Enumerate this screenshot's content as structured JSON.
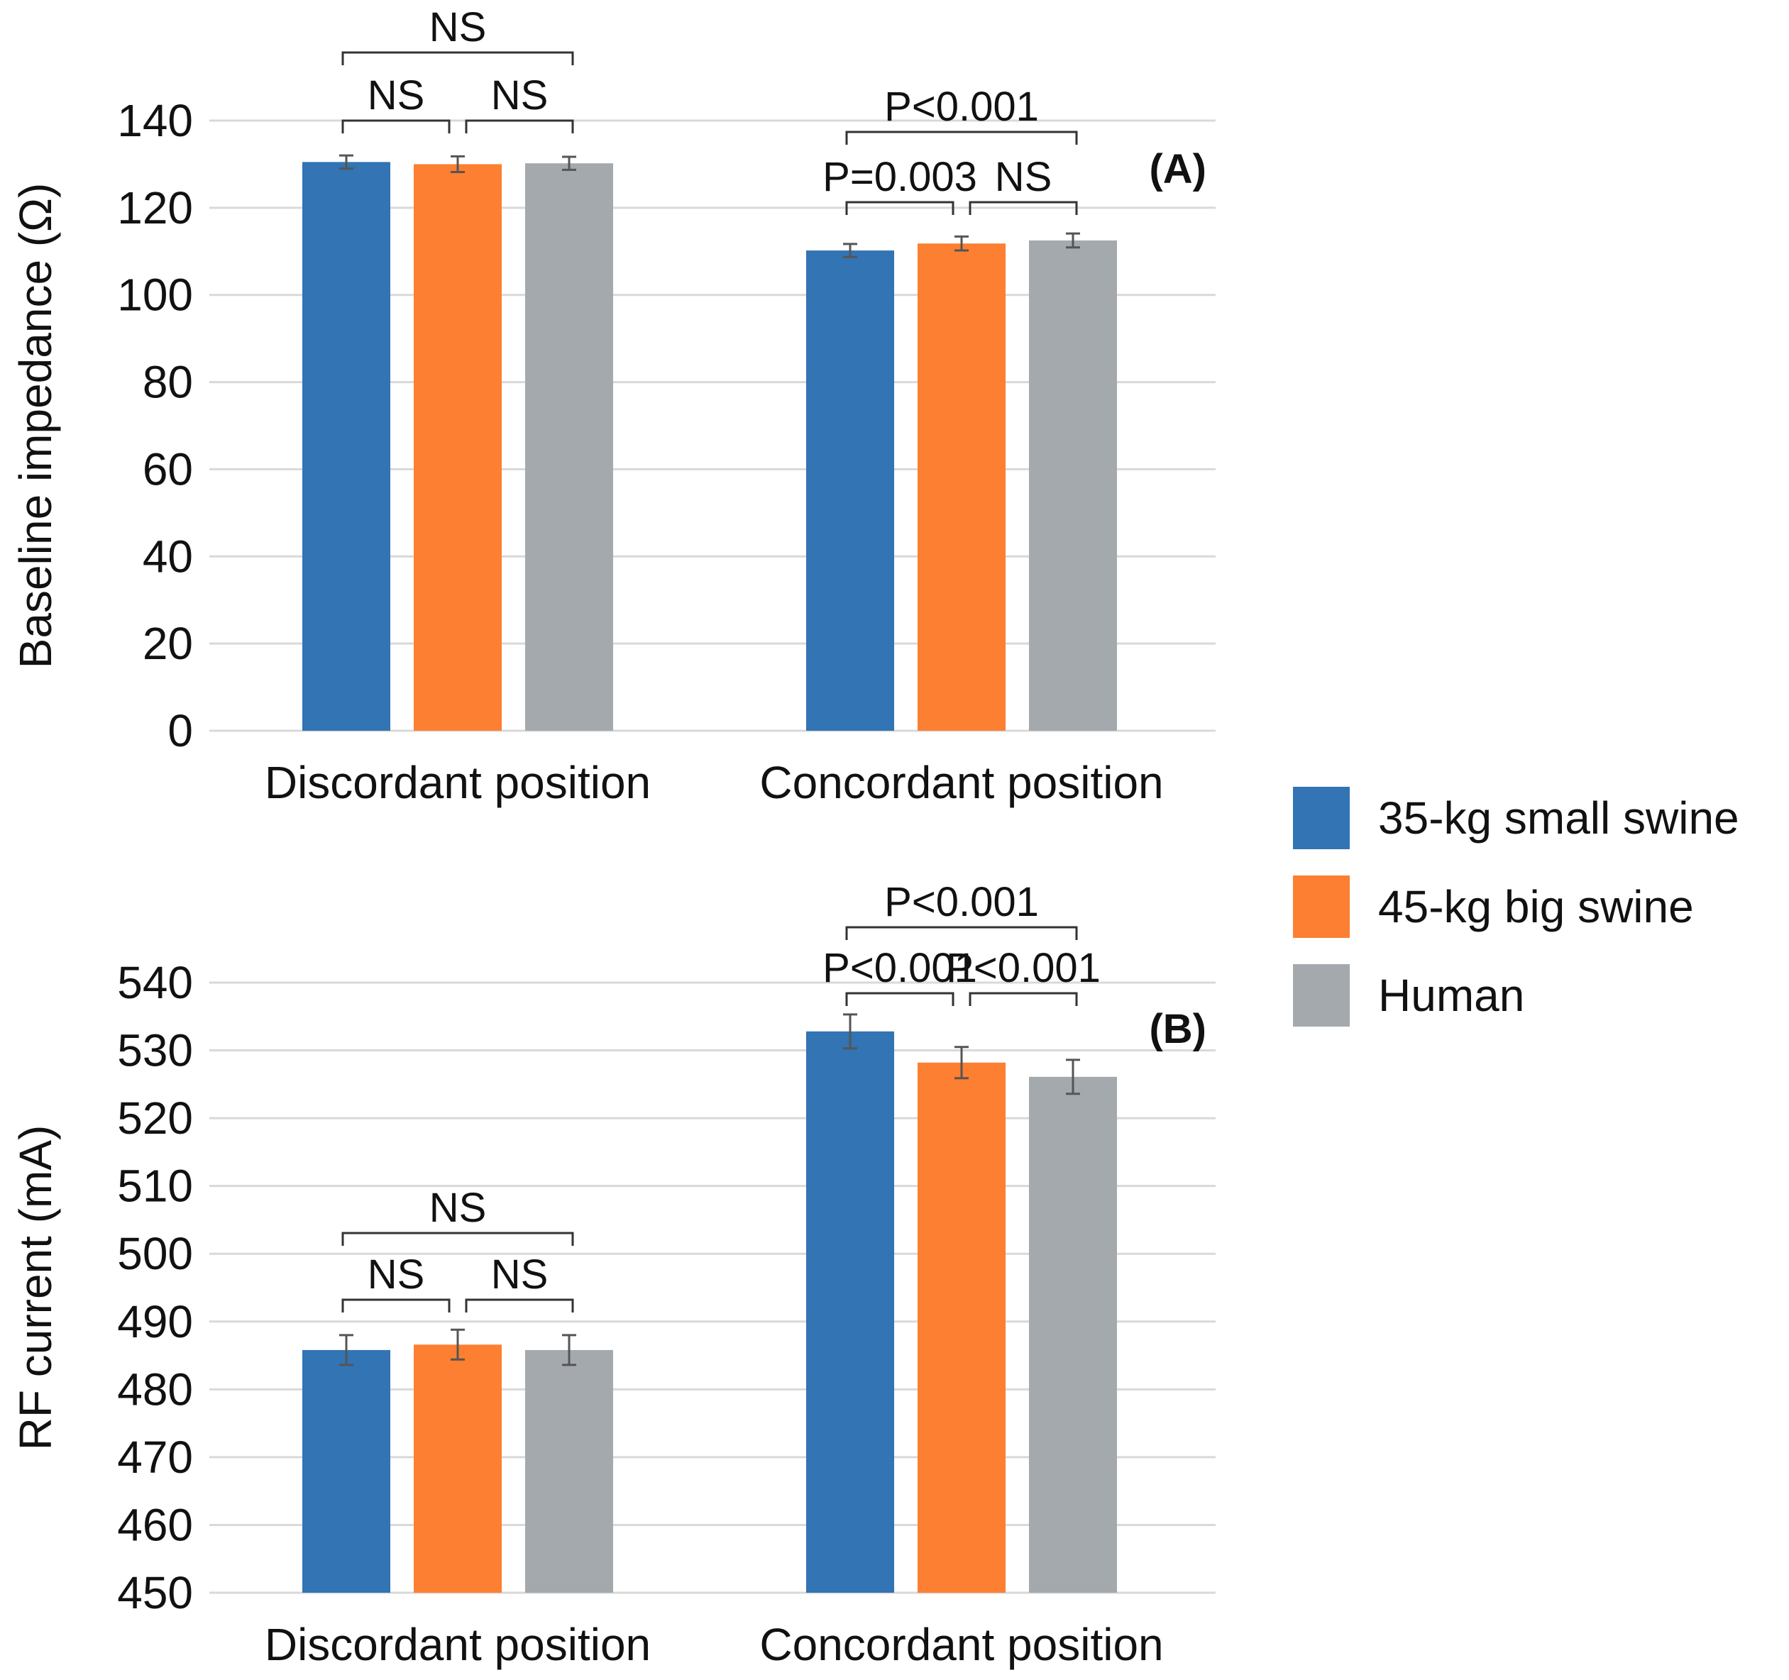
{
  "legend": {
    "items": [
      {
        "label": "35-kg small swine",
        "color": "#3274b4"
      },
      {
        "label": "45-kg big swine",
        "color": "#fd7f31"
      },
      {
        "label": "Human",
        "color": "#a4a9ad"
      }
    ]
  },
  "chart_data": [
    {
      "type": "bar",
      "panel_label": "(A)",
      "ylabel": "Baseline impedance (Ω)",
      "xlabel": "",
      "ylim": [
        0,
        140
      ],
      "yticks": [
        0,
        20,
        40,
        60,
        80,
        100,
        120,
        140
      ],
      "grid": true,
      "categories": [
        "Discordant position",
        "Concordant position"
      ],
      "series": [
        {
          "name": "35-kg small swine",
          "values": [
            130.5,
            110.2
          ],
          "errors": [
            1.5,
            1.5
          ],
          "color": "#3274b4"
        },
        {
          "name": "45-kg big swine",
          "values": [
            130.0,
            111.8
          ],
          "errors": [
            1.8,
            1.6
          ],
          "color": "#fd7f31"
        },
        {
          "name": "Human",
          "values": [
            130.2,
            112.5
          ],
          "errors": [
            1.5,
            1.6
          ],
          "color": "#a4a9ad"
        }
      ],
      "annotations": [
        {
          "category": 0,
          "from": 0,
          "to": 1,
          "label": "NS",
          "level": 1
        },
        {
          "category": 0,
          "from": 1,
          "to": 2,
          "label": "NS",
          "level": 1
        },
        {
          "category": 0,
          "from": 0,
          "to": 2,
          "label": "NS",
          "level": 2
        },
        {
          "category": 1,
          "from": 0,
          "to": 1,
          "label": "P=0.003",
          "level": 1
        },
        {
          "category": 1,
          "from": 1,
          "to": 2,
          "label": "NS",
          "level": 1
        },
        {
          "category": 1,
          "from": 0,
          "to": 2,
          "label": "P<0.001",
          "level": 2
        }
      ]
    },
    {
      "type": "bar",
      "panel_label": "(B)",
      "ylabel": "RF current  (mA)",
      "xlabel": "",
      "ylim": [
        450,
        540
      ],
      "yticks": [
        450,
        460,
        470,
        480,
        490,
        500,
        510,
        520,
        530,
        540
      ],
      "grid": true,
      "categories": [
        "Discordant position",
        "Concordant position"
      ],
      "series": [
        {
          "name": "35-kg small swine",
          "values": [
            485.8,
            532.8
          ],
          "errors": [
            2.2,
            2.5
          ],
          "color": "#3274b4"
        },
        {
          "name": "45-kg big swine",
          "values": [
            486.6,
            528.2
          ],
          "errors": [
            2.2,
            2.3
          ],
          "color": "#fd7f31"
        },
        {
          "name": "Human",
          "values": [
            485.8,
            526.1
          ],
          "errors": [
            2.2,
            2.5
          ],
          "color": "#a4a9ad"
        }
      ],
      "annotations": [
        {
          "category": 0,
          "from": 0,
          "to": 1,
          "label": "NS",
          "level": 1
        },
        {
          "category": 0,
          "from": 1,
          "to": 2,
          "label": "NS",
          "level": 1
        },
        {
          "category": 0,
          "from": 0,
          "to": 2,
          "label": "NS",
          "level": 2
        },
        {
          "category": 1,
          "from": 0,
          "to": 1,
          "label": "P<0.001",
          "level": 1
        },
        {
          "category": 1,
          "from": 1,
          "to": 2,
          "label": "P<0.001",
          "level": 1
        },
        {
          "category": 1,
          "from": 0,
          "to": 2,
          "label": "P<0.001",
          "level": 2
        }
      ]
    }
  ]
}
